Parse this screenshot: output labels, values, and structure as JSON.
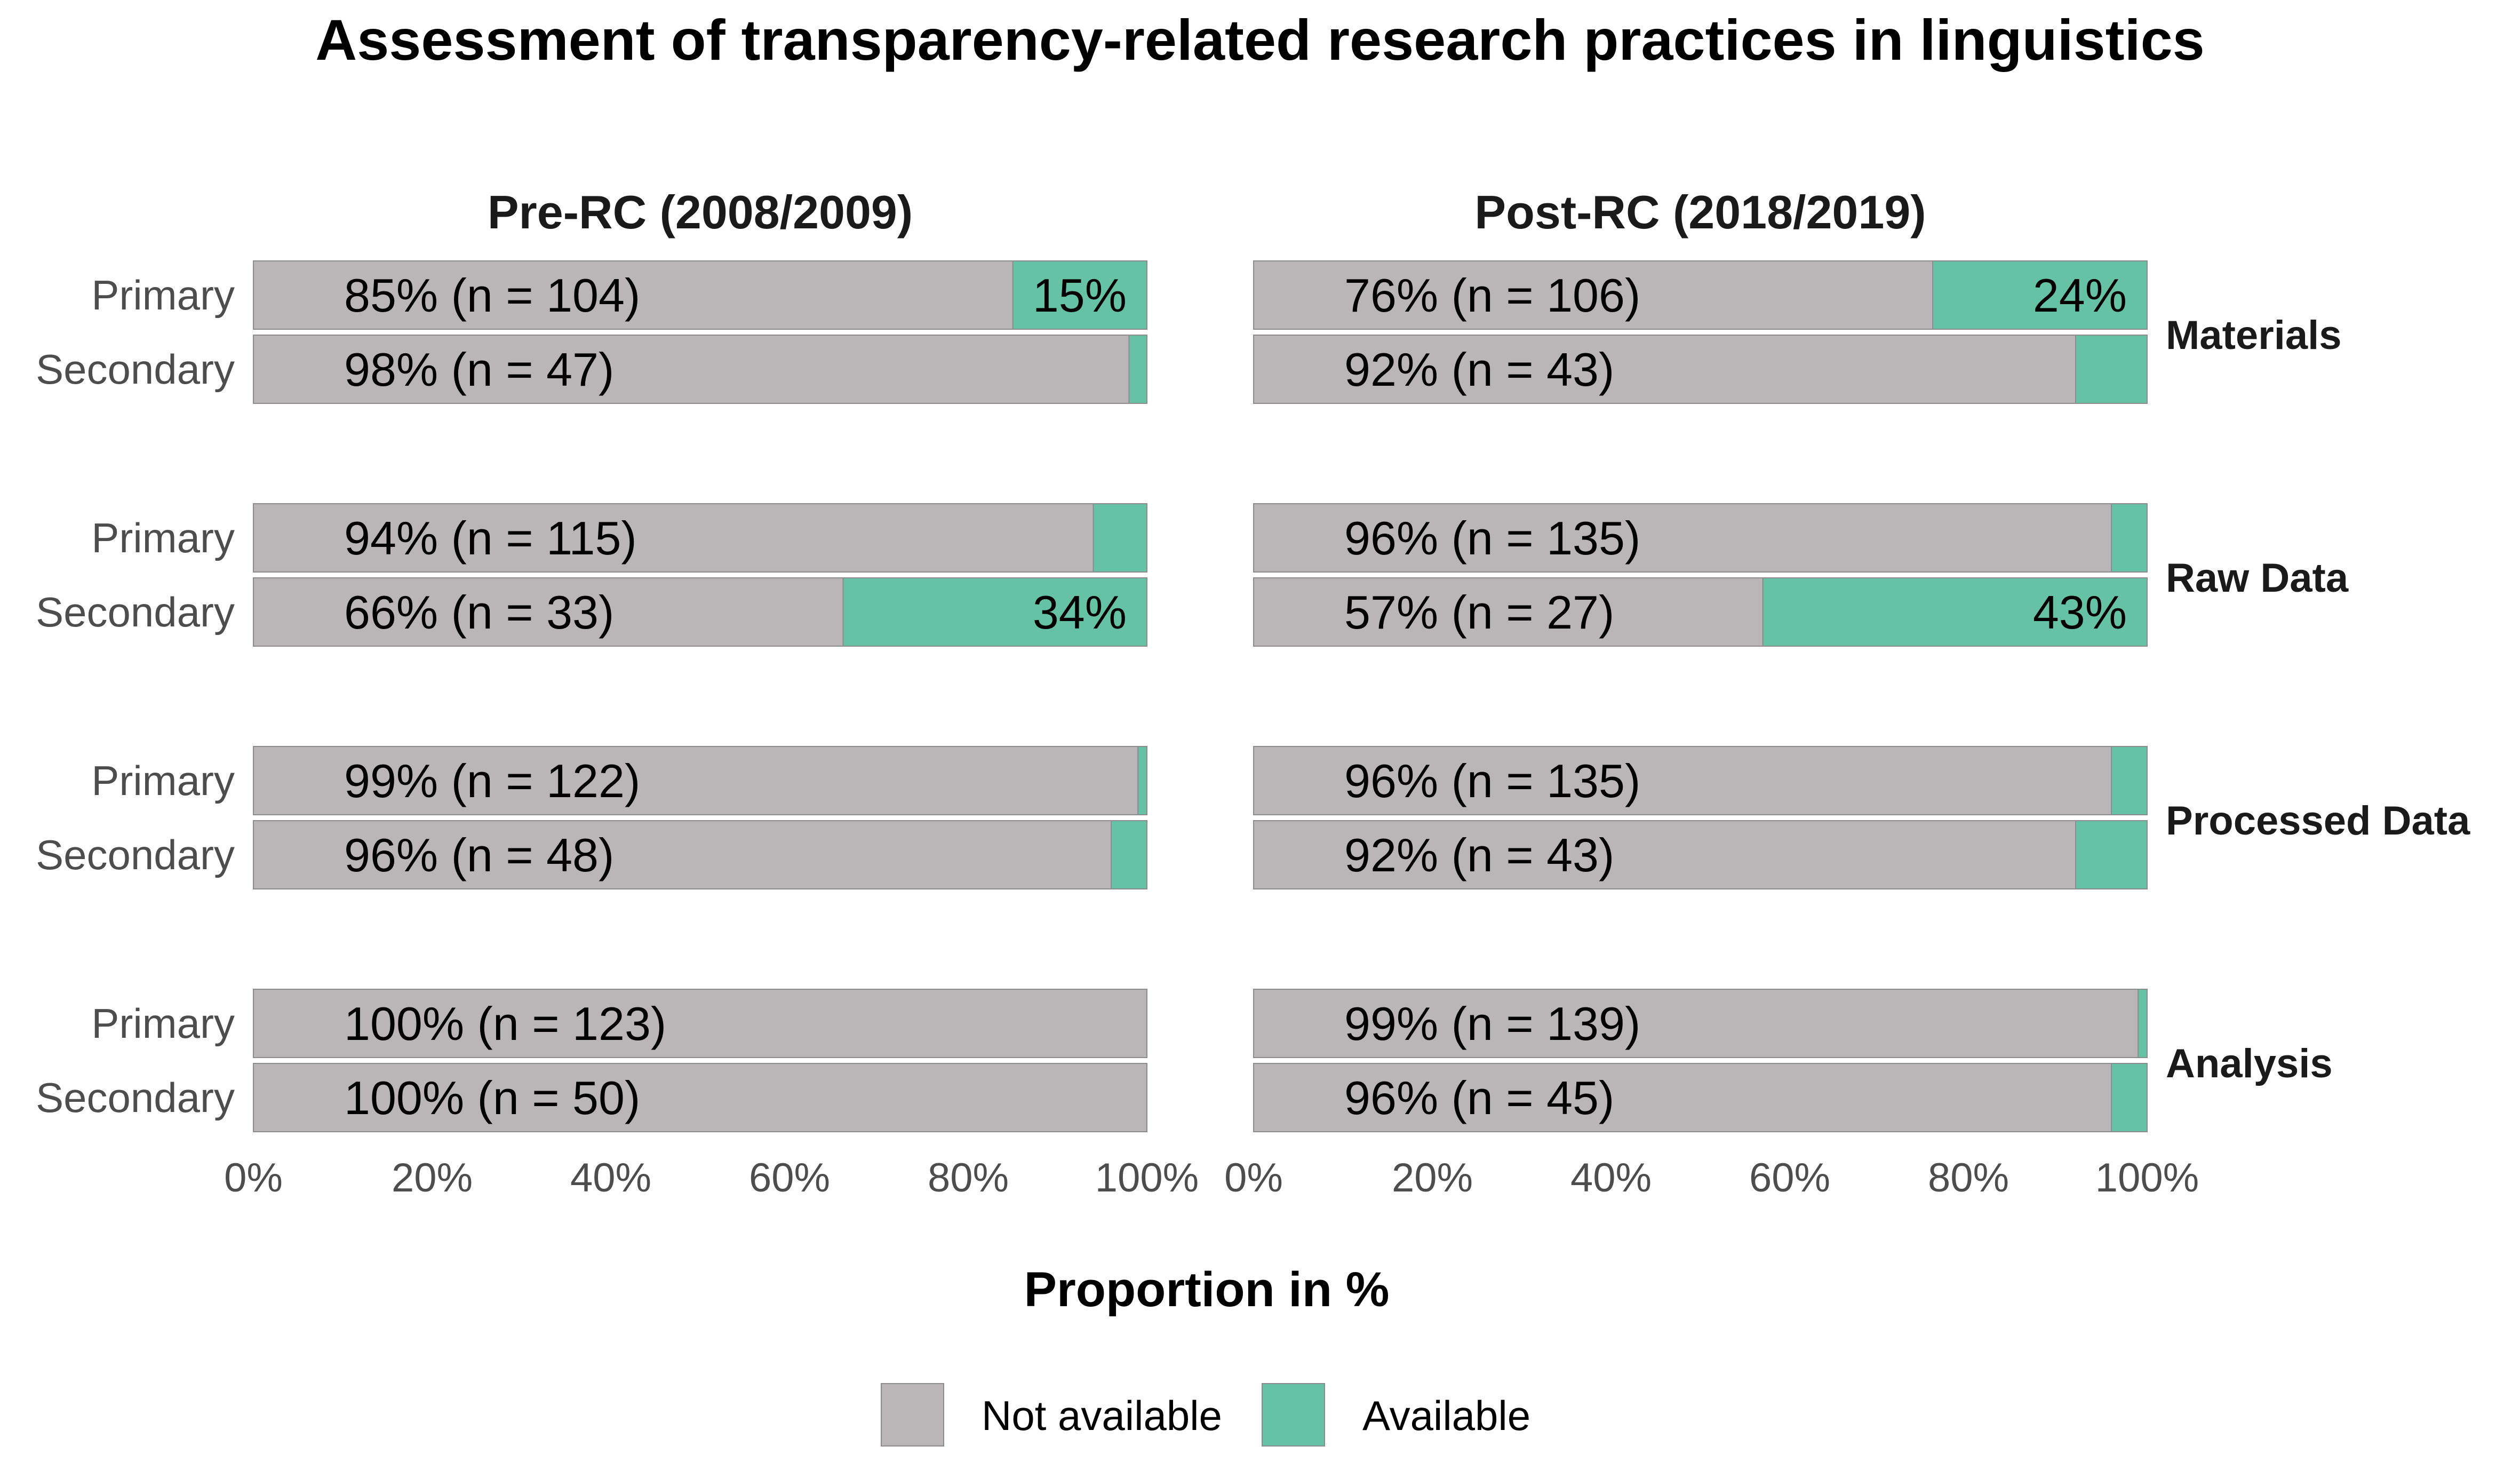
{
  "chart_data": {
    "type": "bar",
    "orientation": "horizontal",
    "stacked": true,
    "title": "Assessment of transparency-related research practices in linguistics",
    "xlabel": "Proportion in %",
    "x_ticks": [
      "0%",
      "20%",
      "40%",
      "60%",
      "80%",
      "100%"
    ],
    "xlim": [
      0,
      100
    ],
    "grid": false,
    "legend_position": "bottom",
    "colors": {
      "Not available": "#bab5b6",
      "Available": "#66c2a5"
    },
    "legend": [
      {
        "name": "Not available",
        "color": "#bab5b6"
      },
      {
        "name": "Available",
        "color": "#66c2a5"
      }
    ],
    "panels": [
      "Pre-RC (2008/2009)",
      "Post-RC (2018/2019)"
    ],
    "facets": [
      "Materials",
      "Raw Data",
      "Processed Data",
      "Analysis"
    ],
    "categories": [
      "Primary",
      "Secondary"
    ],
    "series": [
      {
        "panel": "Pre-RC (2008/2009)",
        "facet": "Materials",
        "rows": [
          {
            "category": "Primary",
            "not_available": 85,
            "available": 15,
            "label": "85% (n = 104)",
            "available_label": "15%"
          },
          {
            "category": "Secondary",
            "not_available": 98,
            "available": 2,
            "label": "98% (n = 47)",
            "available_label": ""
          }
        ]
      },
      {
        "panel": "Pre-RC (2008/2009)",
        "facet": "Raw Data",
        "rows": [
          {
            "category": "Primary",
            "not_available": 94,
            "available": 6,
            "label": "94% (n = 115)",
            "available_label": ""
          },
          {
            "category": "Secondary",
            "not_available": 66,
            "available": 34,
            "label": "66% (n = 33)",
            "available_label": "34%"
          }
        ]
      },
      {
        "panel": "Pre-RC (2008/2009)",
        "facet": "Processed Data",
        "rows": [
          {
            "category": "Primary",
            "not_available": 99,
            "available": 1,
            "label": "99% (n = 122)",
            "available_label": ""
          },
          {
            "category": "Secondary",
            "not_available": 96,
            "available": 4,
            "label": "96% (n = 48)",
            "available_label": ""
          }
        ]
      },
      {
        "panel": "Pre-RC (2008/2009)",
        "facet": "Analysis",
        "rows": [
          {
            "category": "Primary",
            "not_available": 100,
            "available": 0,
            "label": "100% (n = 123)",
            "available_label": ""
          },
          {
            "category": "Secondary",
            "not_available": 100,
            "available": 0,
            "label": "100% (n = 50)",
            "available_label": ""
          }
        ]
      },
      {
        "panel": "Post-RC (2018/2019)",
        "facet": "Materials",
        "rows": [
          {
            "category": "Primary",
            "not_available": 76,
            "available": 24,
            "label": "76% (n = 106)",
            "available_label": "24%"
          },
          {
            "category": "Secondary",
            "not_available": 92,
            "available": 8,
            "label": "92% (n = 43)",
            "available_label": ""
          }
        ]
      },
      {
        "panel": "Post-RC (2018/2019)",
        "facet": "Raw Data",
        "rows": [
          {
            "category": "Primary",
            "not_available": 96,
            "available": 4,
            "label": "96% (n = 135)",
            "available_label": ""
          },
          {
            "category": "Secondary",
            "not_available": 57,
            "available": 43,
            "label": "57% (n = 27)",
            "available_label": "43%"
          }
        ]
      },
      {
        "panel": "Post-RC (2018/2019)",
        "facet": "Processed Data",
        "rows": [
          {
            "category": "Primary",
            "not_available": 96,
            "available": 4,
            "label": "96% (n = 135)",
            "available_label": ""
          },
          {
            "category": "Secondary",
            "not_available": 92,
            "available": 8,
            "label": "92% (n = 43)",
            "available_label": ""
          }
        ]
      },
      {
        "panel": "Post-RC (2018/2019)",
        "facet": "Analysis",
        "rows": [
          {
            "category": "Primary",
            "not_available": 99,
            "available": 1,
            "label": "99% (n = 139)",
            "available_label": ""
          },
          {
            "category": "Secondary",
            "not_available": 96,
            "available": 4,
            "label": "96% (n = 45)",
            "available_label": ""
          }
        ]
      }
    ]
  }
}
